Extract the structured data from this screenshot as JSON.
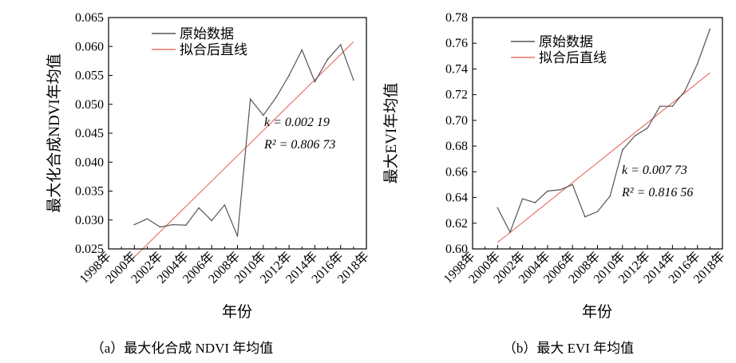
{
  "legend": {
    "raw_label": "原始数据",
    "fit_label": "拟合后直线"
  },
  "colors": {
    "raw": "#555555",
    "fit": "#e8766b",
    "axis": "#000000"
  },
  "chart_data": [
    {
      "type": "line",
      "caption": "（a）最大化合成 NDVI 年均值",
      "xlabel": "年份",
      "ylabel": "最大化合成NDVI年均值",
      "xlim": [
        1998,
        2018
      ],
      "ylim": [
        0.025,
        0.065
      ],
      "x_ticks": [
        "1998年",
        "2000年",
        "2002年",
        "2004年",
        "2006年",
        "2008年",
        "2010年",
        "2012年",
        "2014年",
        "2016年",
        "2018年"
      ],
      "y_ticks": [
        "0.025",
        "0.030",
        "0.035",
        "0.040",
        "0.045",
        "0.050",
        "0.055",
        "0.060",
        "0.065"
      ],
      "series": [
        {
          "name": "原始数据",
          "x": [
            2000,
            2001,
            2002,
            2003,
            2004,
            2005,
            2006,
            2007,
            2008,
            2009,
            2010,
            2011,
            2012,
            2013,
            2014,
            2015,
            2016,
            2017
          ],
          "y": [
            0.0292,
            0.0302,
            0.0288,
            0.0292,
            0.0291,
            0.0321,
            0.0299,
            0.0326,
            0.0272,
            0.0509,
            0.0481,
            0.0512,
            0.055,
            0.0594,
            0.0539,
            0.0578,
            0.0603,
            0.0542
          ]
        },
        {
          "name": "拟合后直线",
          "x": [
            2000,
            2017
          ],
          "y": [
            0.0236,
            0.0608
          ]
        }
      ],
      "annotation": {
        "k": "k = 0.002 19",
        "r2": "R² = 0.806 73"
      }
    },
    {
      "type": "line",
      "caption": "（b）最大 EVI 年均值",
      "xlabel": "年份",
      "ylabel": "最大EVI年均值",
      "xlim": [
        1998,
        2018
      ],
      "ylim": [
        0.6,
        0.78
      ],
      "x_ticks": [
        "1998年",
        "2000年",
        "2002年",
        "2004年",
        "2006年",
        "2008年",
        "2010年",
        "2012年",
        "2014年",
        "2016年",
        "2018年"
      ],
      "y_ticks": [
        "0.60",
        "0.62",
        "0.64",
        "0.66",
        "0.68",
        "0.70",
        "0.72",
        "0.74",
        "0.76",
        "0.78"
      ],
      "series": [
        {
          "name": "原始数据",
          "x": [
            2000,
            2001,
            2002,
            2003,
            2004,
            2005,
            2006,
            2007,
            2008,
            2009,
            2010,
            2011,
            2012,
            2013,
            2014,
            2015,
            2016,
            2017
          ],
          "y": [
            0.632,
            0.613,
            0.639,
            0.636,
            0.645,
            0.646,
            0.65,
            0.625,
            0.629,
            0.641,
            0.677,
            0.688,
            0.694,
            0.711,
            0.711,
            0.723,
            0.744,
            0.771
          ]
        },
        {
          "name": "拟合后直线",
          "x": [
            2000,
            2017
          ],
          "y": [
            0.605,
            0.737
          ]
        }
      ],
      "annotation": {
        "k": "k = 0.007 73",
        "r2": "R² = 0.816 56"
      }
    }
  ]
}
